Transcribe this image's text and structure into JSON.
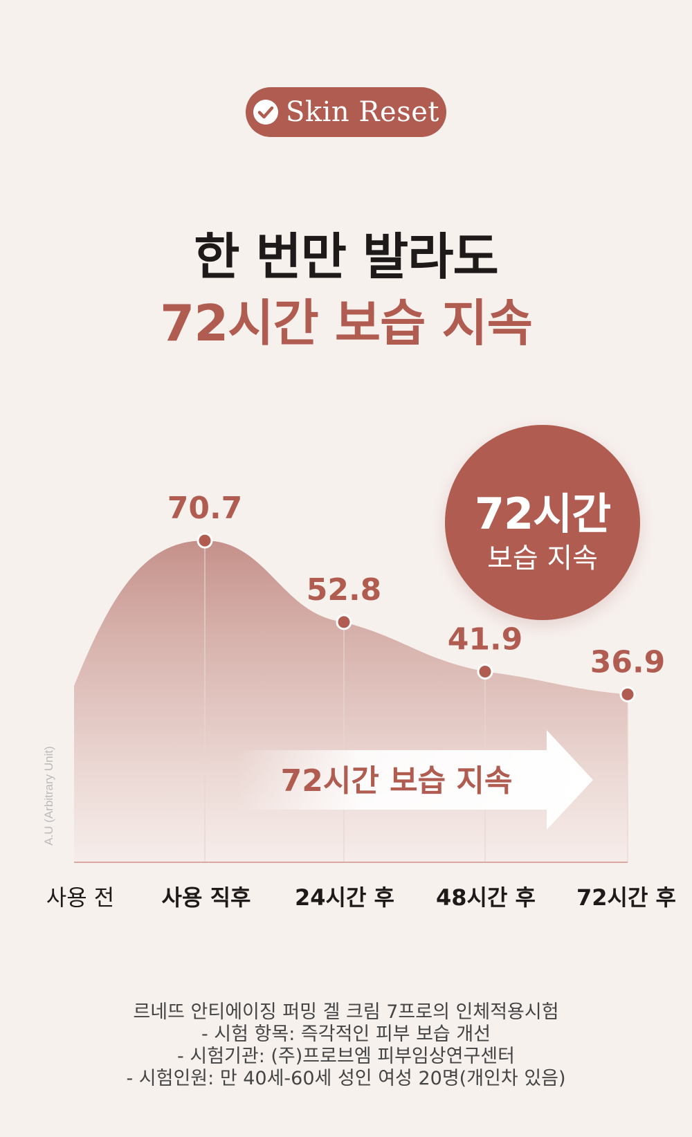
{
  "badge": {
    "label": "Skin Reset",
    "icon": "check-circle-icon"
  },
  "headline": {
    "line1": "한 번만 발라도",
    "line2": "72시간 보습 지속"
  },
  "circle": {
    "big": "72시간",
    "small": "보습 지속"
  },
  "colors": {
    "accent": "#b05c50",
    "background": "#f7f1ee",
    "text": "#1e1a19"
  },
  "chart_data": {
    "type": "area",
    "categories": [
      "사용 전",
      "사용 직후",
      "24시간 후",
      "48시간 후",
      "72시간 후"
    ],
    "series": [
      {
        "values": [
          null,
          70.7,
          52.8,
          41.9,
          36.9
        ]
      }
    ],
    "data_labels": [
      "70.7",
      "52.8",
      "41.9",
      "36.9"
    ],
    "ylabel": "A.U (Arbitrary Unit)",
    "arrow_text": "72시간 보습 지속",
    "ylim": [
      0,
      80
    ],
    "grid": true
  },
  "footnote": [
    "르네뜨 안티에이징 퍼밍 겔 크림 7프로의 인체적용시험",
    "- 시험 항목: 즉각적인 피부 보습 개선",
    "- 시험기관: (주)프로브엠 피부임상연구센터",
    "- 시험인원: 만 40세-60세 성인 여성 20명(개인차 있음)"
  ]
}
